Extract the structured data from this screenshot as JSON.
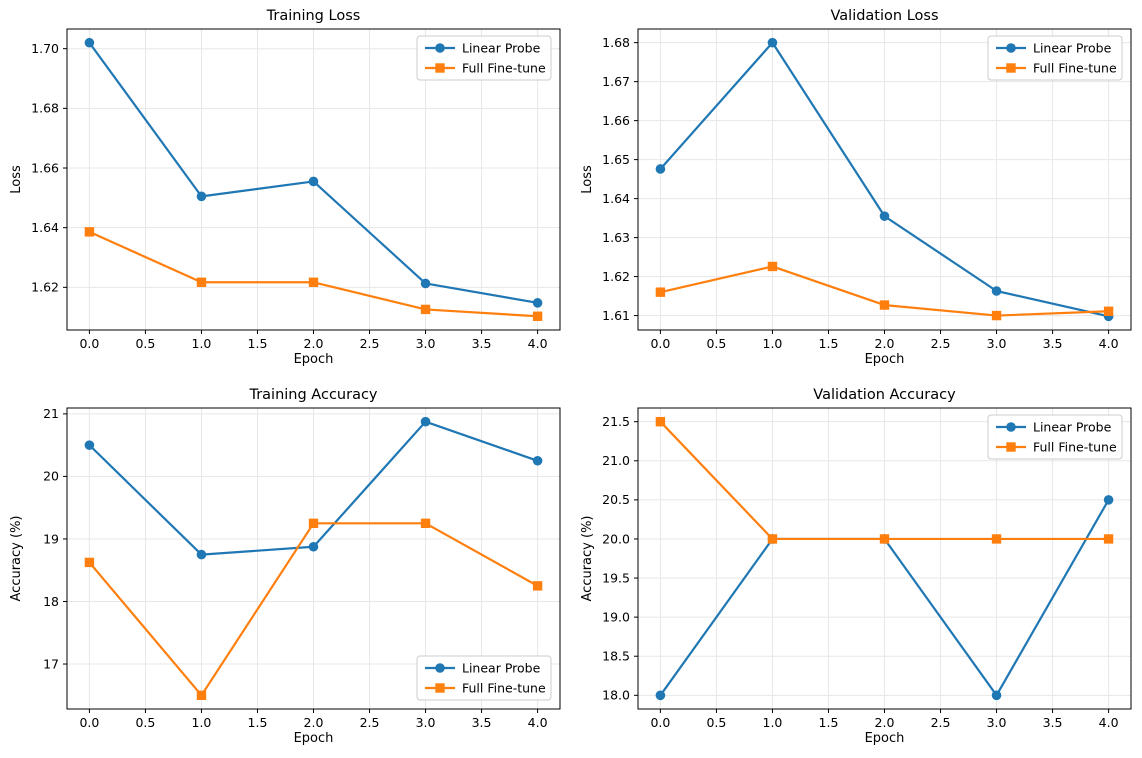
{
  "figure": {
    "background": "#ffffff",
    "layout": "2x2-subplots"
  },
  "colors": {
    "linear_probe": "#1f77b4",
    "full_finetune": "#ff7f0e",
    "grid": "#e7e7e7",
    "axis": "#000000",
    "legend_border": "#cccccc",
    "legend_background": "#ffffff"
  },
  "legend_labels": [
    "Linear Probe",
    "Full Fine-tune"
  ],
  "chart_data": [
    {
      "id": "training-loss",
      "type": "line",
      "title": "Training Loss",
      "xlabel": "Epoch",
      "ylabel": "Loss",
      "x": [
        0,
        1,
        2,
        3,
        4
      ],
      "xlim": [
        -0.2,
        4.2
      ],
      "ylim": [
        1.6057,
        1.7066
      ],
      "xticks": [
        0.0,
        0.5,
        1.0,
        1.5,
        2.0,
        2.5,
        3.0,
        3.5,
        4.0
      ],
      "yticks": [
        1.62,
        1.64,
        1.66,
        1.68,
        1.7
      ],
      "xtick_decimals": 1,
      "ytick_decimals": 2,
      "grid": true,
      "legend_position": "upper right",
      "series": [
        {
          "name": "Linear Probe",
          "color": "#1f77b4",
          "marker": "circle",
          "values": [
            1.702,
            1.6505,
            1.6555,
            1.6213,
            1.6148
          ]
        },
        {
          "name": "Full Fine-tune",
          "color": "#ff7f0e",
          "marker": "square",
          "values": [
            1.6386,
            1.6217,
            1.6217,
            1.6126,
            1.6103
          ]
        }
      ]
    },
    {
      "id": "validation-loss",
      "type": "line",
      "title": "Validation Loss",
      "xlabel": "Epoch",
      "ylabel": "Loss",
      "x": [
        0,
        1,
        2,
        3,
        4
      ],
      "xlim": [
        -0.2,
        4.2
      ],
      "ylim": [
        1.6063,
        1.6835
      ],
      "xticks": [
        0.0,
        0.5,
        1.0,
        1.5,
        2.0,
        2.5,
        3.0,
        3.5,
        4.0
      ],
      "yticks": [
        1.61,
        1.62,
        1.63,
        1.64,
        1.65,
        1.66,
        1.67,
        1.68
      ],
      "xtick_decimals": 1,
      "ytick_decimals": 2,
      "grid": true,
      "legend_position": "upper right",
      "series": [
        {
          "name": "Linear Probe",
          "color": "#1f77b4",
          "marker": "circle",
          "values": [
            1.6476,
            1.68,
            1.6355,
            1.6163,
            1.6098
          ]
        },
        {
          "name": "Full Fine-tune",
          "color": "#ff7f0e",
          "marker": "square",
          "values": [
            1.616,
            1.6226,
            1.6127,
            1.61,
            1.6111
          ]
        }
      ]
    },
    {
      "id": "training-accuracy",
      "type": "line",
      "title": "Training Accuracy",
      "xlabel": "Epoch",
      "ylabel": "Accuracy (%)",
      "x": [
        0,
        1,
        2,
        3,
        4
      ],
      "xlim": [
        -0.2,
        4.2
      ],
      "ylim": [
        16.281,
        21.094
      ],
      "xticks": [
        0.0,
        0.5,
        1.0,
        1.5,
        2.0,
        2.5,
        3.0,
        3.5,
        4.0
      ],
      "yticks": [
        17,
        18,
        19,
        20,
        21
      ],
      "xtick_decimals": 1,
      "ytick_decimals": 0,
      "grid": true,
      "legend_position": "lower right",
      "series": [
        {
          "name": "Linear Probe",
          "color": "#1f77b4",
          "marker": "circle",
          "values": [
            20.5,
            18.75,
            18.875,
            20.875,
            20.25
          ]
        },
        {
          "name": "Full Fine-tune",
          "color": "#ff7f0e",
          "marker": "square",
          "values": [
            18.625,
            16.5,
            19.25,
            19.25,
            18.25
          ]
        }
      ]
    },
    {
      "id": "validation-accuracy",
      "type": "line",
      "title": "Validation Accuracy",
      "xlabel": "Epoch",
      "ylabel": "Accuracy (%)",
      "x": [
        0,
        1,
        2,
        3,
        4
      ],
      "xlim": [
        -0.2,
        4.2
      ],
      "ylim": [
        17.825,
        21.675
      ],
      "xticks": [
        0.0,
        0.5,
        1.0,
        1.5,
        2.0,
        2.5,
        3.0,
        3.5,
        4.0
      ],
      "yticks": [
        18.0,
        18.5,
        19.0,
        19.5,
        20.0,
        20.5,
        21.0,
        21.5
      ],
      "xtick_decimals": 1,
      "ytick_decimals": 1,
      "grid": true,
      "legend_position": "upper right",
      "series": [
        {
          "name": "Linear Probe",
          "color": "#1f77b4",
          "marker": "circle",
          "values": [
            18.0,
            20.0,
            20.0,
            18.0,
            20.5
          ]
        },
        {
          "name": "Full Fine-tune",
          "color": "#ff7f0e",
          "marker": "square",
          "values": [
            21.5,
            20.0,
            20.0,
            20.0,
            20.0
          ]
        }
      ]
    }
  ]
}
